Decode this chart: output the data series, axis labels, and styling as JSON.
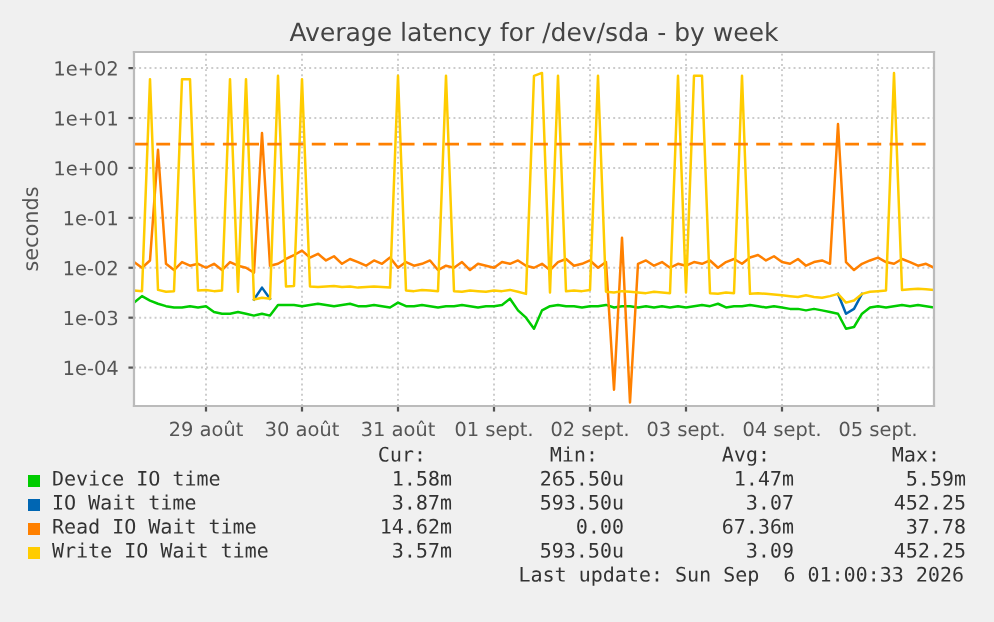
{
  "chart_data": {
    "type": "line",
    "title": "Average latency for /dev/sda - by week",
    "ylabel": "seconds",
    "log": "y",
    "grid": true,
    "legend": "bottom",
    "line_style": "solid",
    "marker": "none",
    "x": [
      "2026-08-28T18:00",
      "2026-08-28T20:00",
      "2026-08-28T22:00",
      "2026-08-29T00:00",
      "2026-08-29T02:00",
      "2026-08-29T04:00",
      "2026-08-29T06:00",
      "2026-08-29T08:00",
      "2026-08-29T10:00",
      "2026-08-29T12:00",
      "2026-08-29T14:00",
      "2026-08-29T16:00",
      "2026-08-29T18:00",
      "2026-08-29T20:00",
      "2026-08-29T22:00",
      "2026-08-30T00:00",
      "2026-08-30T02:00",
      "2026-08-30T04:00",
      "2026-08-30T06:00",
      "2026-08-30T08:00",
      "2026-08-30T10:00",
      "2026-08-30T12:00",
      "2026-08-30T14:00",
      "2026-08-30T16:00",
      "2026-08-30T18:00",
      "2026-08-30T20:00",
      "2026-08-30T22:00",
      "2026-08-31T00:00",
      "2026-08-31T02:00",
      "2026-08-31T04:00",
      "2026-08-31T06:00",
      "2026-08-31T08:00",
      "2026-08-31T10:00",
      "2026-08-31T12:00",
      "2026-08-31T14:00",
      "2026-08-31T16:00",
      "2026-08-31T18:00",
      "2026-08-31T20:00",
      "2026-08-31T22:00",
      "2026-09-01T00:00",
      "2026-09-01T02:00",
      "2026-09-01T04:00",
      "2026-09-01T06:00",
      "2026-09-01T08:00",
      "2026-09-01T10:00",
      "2026-09-01T12:00",
      "2026-09-01T14:00",
      "2026-09-01T16:00",
      "2026-09-01T18:00",
      "2026-09-01T20:00",
      "2026-09-01T22:00",
      "2026-09-02T00:00",
      "2026-09-02T02:00",
      "2026-09-02T04:00",
      "2026-09-02T06:00",
      "2026-09-02T08:00",
      "2026-09-02T10:00",
      "2026-09-02T12:00",
      "2026-09-02T14:00",
      "2026-09-02T16:00",
      "2026-09-02T18:00",
      "2026-09-02T20:00",
      "2026-09-02T22:00",
      "2026-09-03T00:00",
      "2026-09-03T02:00",
      "2026-09-03T04:00",
      "2026-09-03T06:00",
      "2026-09-03T08:00",
      "2026-09-03T10:00",
      "2026-09-03T12:00",
      "2026-09-03T14:00",
      "2026-09-03T16:00",
      "2026-09-03T18:00",
      "2026-09-03T20:00",
      "2026-09-03T22:00",
      "2026-09-04T00:00",
      "2026-09-04T02:00",
      "2026-09-04T04:00",
      "2026-09-04T06:00",
      "2026-09-04T08:00",
      "2026-09-04T10:00",
      "2026-09-04T12:00",
      "2026-09-04T14:00",
      "2026-09-04T16:00",
      "2026-09-04T18:00",
      "2026-09-04T20:00",
      "2026-09-04T22:00",
      "2026-09-05T00:00",
      "2026-09-05T02:00",
      "2026-09-05T04:00",
      "2026-09-05T06:00",
      "2026-09-05T08:00",
      "2026-09-05T10:00",
      "2026-09-05T12:00",
      "2026-09-05T14:00",
      "2026-09-05T16:00",
      "2026-09-05T18:00",
      "2026-09-05T20:00",
      "2026-09-05T22:00",
      "2026-09-06T00:00",
      "2026-09-06T02:00"
    ],
    "series": [
      {
        "name": "Device IO time",
        "color": "#00cc00",
        "values": [
          0.002,
          0.0027,
          0.0022,
          0.0019,
          0.0017,
          0.0016,
          0.0016,
          0.0017,
          0.0016,
          0.0017,
          0.0013,
          0.0012,
          0.0012,
          0.0013,
          0.0012,
          0.0011,
          0.0012,
          0.0011,
          0.0018,
          0.0018,
          0.0018,
          0.0017,
          0.0018,
          0.0019,
          0.0018,
          0.0017,
          0.0018,
          0.0019,
          0.0017,
          0.0017,
          0.0018,
          0.0017,
          0.0016,
          0.002,
          0.0017,
          0.0017,
          0.0018,
          0.0017,
          0.0016,
          0.0017,
          0.0017,
          0.0018,
          0.0017,
          0.0016,
          0.0017,
          0.0017,
          0.0018,
          0.0024,
          0.0014,
          0.001,
          0.0006,
          0.0014,
          0.0017,
          0.0018,
          0.0017,
          0.0017,
          0.0016,
          0.0017,
          0.0017,
          0.0018,
          0.0016,
          0.0017,
          0.0017,
          0.0016,
          0.0017,
          0.0016,
          0.0017,
          0.0016,
          0.0017,
          0.0016,
          0.0017,
          0.0018,
          0.0017,
          0.0019,
          0.0016,
          0.0017,
          0.0017,
          0.0018,
          0.0017,
          0.0016,
          0.0017,
          0.0016,
          0.0015,
          0.0015,
          0.0014,
          0.0015,
          0.0014,
          0.0013,
          0.0012,
          0.0006,
          0.00065,
          0.0012,
          0.0016,
          0.0017,
          0.0016,
          0.0017,
          0.0018,
          0.0017,
          0.0018,
          0.0017,
          0.0016
        ]
      },
      {
        "name": "IO Wait time",
        "color": "#0066b3",
        "values": [
          null,
          null,
          null,
          null,
          null,
          null,
          null,
          null,
          null,
          null,
          null,
          null,
          null,
          null,
          null,
          0.0023,
          0.004,
          0.0024,
          null,
          null,
          null,
          null,
          null,
          null,
          null,
          null,
          null,
          null,
          null,
          null,
          null,
          null,
          null,
          null,
          null,
          null,
          null,
          null,
          null,
          null,
          null,
          null,
          null,
          null,
          null,
          null,
          null,
          null,
          null,
          null,
          null,
          null,
          null,
          null,
          null,
          null,
          null,
          null,
          null,
          null,
          null,
          null,
          null,
          null,
          null,
          null,
          null,
          null,
          null,
          null,
          null,
          null,
          null,
          null,
          null,
          null,
          null,
          null,
          null,
          null,
          null,
          null,
          null,
          null,
          null,
          null,
          null,
          null,
          0.003,
          0.0012,
          0.0015,
          0.003,
          null,
          null,
          null,
          null,
          null,
          null,
          null,
          null,
          null
        ]
      },
      {
        "name": "Read IO Wait time",
        "color": "#ff8000",
        "values": [
          0.013,
          0.01,
          0.014,
          2.3,
          0.012,
          0.009,
          0.013,
          0.011,
          0.012,
          0.01,
          0.012,
          0.009,
          0.013,
          0.011,
          0.01,
          0.008,
          5,
          0.011,
          0.012,
          0.015,
          0.018,
          0.022,
          0.016,
          0.019,
          0.014,
          0.017,
          0.012,
          0.015,
          0.013,
          0.011,
          0.014,
          0.012,
          0.016,
          0.01,
          0.013,
          0.011,
          0.012,
          0.014,
          0.009,
          0.011,
          0.01,
          0.013,
          0.009,
          0.012,
          0.011,
          0.01,
          0.013,
          0.012,
          0.014,
          0.011,
          0.01,
          0.012,
          0.009,
          0.013,
          0.015,
          0.011,
          0.012,
          0.014,
          0.01,
          0.013,
          3.6e-05,
          0.04,
          2e-05,
          0.012,
          0.014,
          0.011,
          0.013,
          0.01,
          0.012,
          0.011,
          0.013,
          0.012,
          0.014,
          0.01,
          0.013,
          0.015,
          0.012,
          0.016,
          0.018,
          0.014,
          0.017,
          0.013,
          0.012,
          0.015,
          0.011,
          0.013,
          0.014,
          0.012,
          7.6,
          0.013,
          0.009,
          0.012,
          0.014,
          0.016,
          0.013,
          0.012,
          0.015,
          0.013,
          0.011,
          0.012,
          0.01
        ]
      },
      {
        "name": "Write IO Wait time",
        "color": "#ffcc00",
        "values": [
          0.0035,
          0.0034,
          60,
          0.0036,
          0.0033,
          0.0034,
          60,
          60,
          0.0035,
          0.0036,
          0.0034,
          0.0035,
          60,
          0.0033,
          60,
          0.0023,
          0.0025,
          0.0024,
          70,
          0.0042,
          0.0043,
          60,
          0.0042,
          0.0041,
          0.0042,
          0.0043,
          0.0041,
          0.0042,
          0.004,
          0.0041,
          0.0042,
          0.0041,
          0.004,
          70,
          0.0035,
          0.0034,
          0.0036,
          0.0035,
          0.0034,
          70,
          0.0034,
          0.0033,
          0.0035,
          0.0034,
          0.0033,
          0.0035,
          0.0034,
          0.0036,
          0.0033,
          0.003,
          70,
          80,
          0.0032,
          70,
          0.0034,
          0.0035,
          0.0034,
          0.0036,
          70,
          0.0033,
          0.0032,
          0.0034,
          0.0033,
          0.0032,
          0.0031,
          0.0033,
          0.0032,
          0.0031,
          70,
          0.0032,
          70,
          70,
          0.0031,
          0.003,
          0.0032,
          0.0031,
          70,
          0.003,
          0.0031,
          0.003,
          0.0029,
          0.0028,
          0.0027,
          0.0026,
          0.0028,
          0.0026,
          0.0025,
          0.0027,
          0.003,
          0.002,
          0.0022,
          0.003,
          0.0033,
          0.0034,
          0.0035,
          80,
          0.0036,
          0.0037,
          0.0038,
          0.0037,
          0.0036
        ]
      }
    ],
    "xlim": [
      "2026-08-28T18:00",
      "2026-09-06T02:00"
    ],
    "xticks": [
      {
        "value": "2026-08-29T12:00",
        "label": "29 août"
      },
      {
        "value": "2026-08-30T12:00",
        "label": "30 août"
      },
      {
        "value": "2026-08-31T12:00",
        "label": "31 août"
      },
      {
        "value": "2026-09-01T12:00",
        "label": "01 sept."
      },
      {
        "value": "2026-09-02T12:00",
        "label": "02 sept."
      },
      {
        "value": "2026-09-03T12:00",
        "label": "03 sept."
      },
      {
        "value": "2026-09-04T12:00",
        "label": "04 sept."
      },
      {
        "value": "2026-09-05T12:00",
        "label": "05 sept."
      }
    ],
    "ylim": [
      1.7e-05,
      210
    ],
    "yticks": [
      {
        "value": 0.0001,
        "label": "1e-04"
      },
      {
        "value": 0.001,
        "label": "1e-03"
      },
      {
        "value": 0.01,
        "label": "1e-02"
      },
      {
        "value": 0.1,
        "label": "1e-01"
      },
      {
        "value": 1,
        "label": "1e+00"
      },
      {
        "value": 10,
        "label": "1e+01"
      },
      {
        "value": 100,
        "label": "1e+02"
      }
    ],
    "ref_lines": [
      {
        "axis": "y",
        "value": 3,
        "color": "#ff8000",
        "line_style": "dashed"
      }
    ],
    "annotations": [
      "Cur:",
      "Min:",
      "Avg:",
      "Max:",
      "1.58m",
      "265.50u",
      "1.47m",
      "5.59m",
      "3.87m",
      "593.50u",
      "3.07",
      "452.25",
      "14.62m",
      "0.00",
      "67.36m",
      "37.78",
      "3.57m",
      "593.50u",
      "3.09",
      "452.25",
      "Last update: Sun Sep  6 01:00:33 2026"
    ]
  }
}
